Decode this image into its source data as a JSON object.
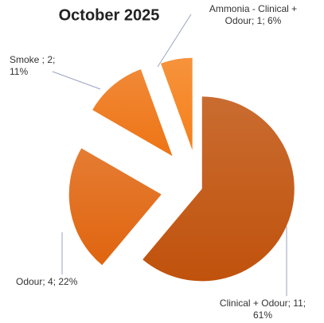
{
  "chart_data": {
    "type": "pie",
    "title": "October 2025",
    "values": [
      11,
      4,
      2,
      1
    ],
    "value_labels": [
      [
        "Clinical + Odour; 11;",
        "61%"
      ],
      [
        "Odour; 4; 22%"
      ],
      [
        "Smoke ; 2;",
        "11%"
      ],
      [
        "Ammonia - Clinical +",
        "Odour; 1; 6%"
      ]
    ],
    "colors": [
      "#c0520c",
      "#e0650f",
      "#ee7414",
      "#f5801a"
    ]
  }
}
